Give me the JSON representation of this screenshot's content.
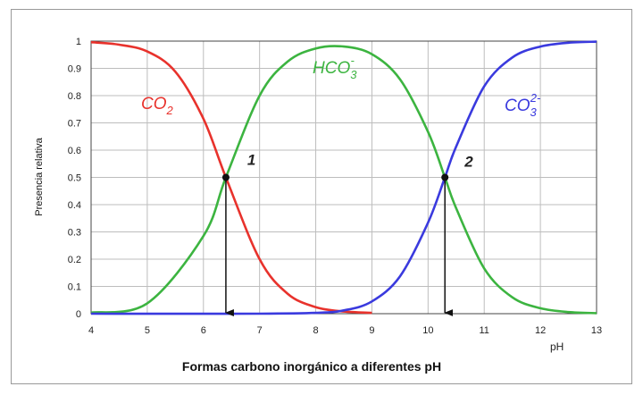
{
  "chart_data": {
    "type": "line",
    "caption": "Formas carbono inorgánico a diferentes pH",
    "xlabel": "pH",
    "ylabel": "Presencia relativa",
    "xlim": [
      4,
      13
    ],
    "ylim": [
      0,
      1
    ],
    "x_ticks": [
      "4",
      "5",
      "6",
      "7",
      "8",
      "9",
      "10",
      "11",
      "12",
      "13"
    ],
    "y_ticks": [
      "0",
      "0.1",
      "0.2",
      "0.3",
      "0.4",
      "0.5",
      "0.6",
      "0.7",
      "0.8",
      "0.9",
      "1"
    ],
    "grid": true,
    "pKa": [
      6.4,
      10.3
    ],
    "series": [
      {
        "name": "CO2",
        "base": "CO",
        "sub": "2",
        "sup": "",
        "color": "#e8322c",
        "x": [
          4,
          4.5,
          5,
          5.5,
          6,
          6.4,
          7,
          7.5,
          8,
          8.5,
          9
        ],
        "y": [
          0.996,
          0.987,
          0.962,
          0.888,
          0.715,
          0.5,
          0.2,
          0.073,
          0.024,
          0.008,
          0.003
        ]
      },
      {
        "name": "HCO3-",
        "base": "HCO",
        "sub": "3",
        "sup": "-",
        "color": "#3cb440",
        "x": [
          4,
          5,
          6,
          6.4,
          7,
          7.5,
          8,
          8.5,
          9,
          9.5,
          10,
          10.3,
          10.5,
          11,
          11.5,
          12,
          12.5,
          13
        ],
        "y": [
          0.004,
          0.038,
          0.285,
          0.5,
          0.8,
          0.925,
          0.973,
          0.98,
          0.952,
          0.86,
          0.667,
          0.5,
          0.387,
          0.166,
          0.06,
          0.02,
          0.006,
          0.002
        ]
      },
      {
        "name": "CO3 2-",
        "base": "CO",
        "sub": "3",
        "sup": "2-",
        "color": "#3a3ade",
        "x": [
          4,
          7,
          8,
          8.5,
          9,
          9.5,
          10,
          10.3,
          10.5,
          11,
          11.5,
          12,
          12.5,
          13
        ],
        "y": [
          0,
          0,
          0.003,
          0.012,
          0.045,
          0.137,
          0.334,
          0.5,
          0.613,
          0.834,
          0.94,
          0.98,
          0.994,
          0.998
        ]
      }
    ],
    "point_labels": [
      "1",
      "2"
    ]
  }
}
